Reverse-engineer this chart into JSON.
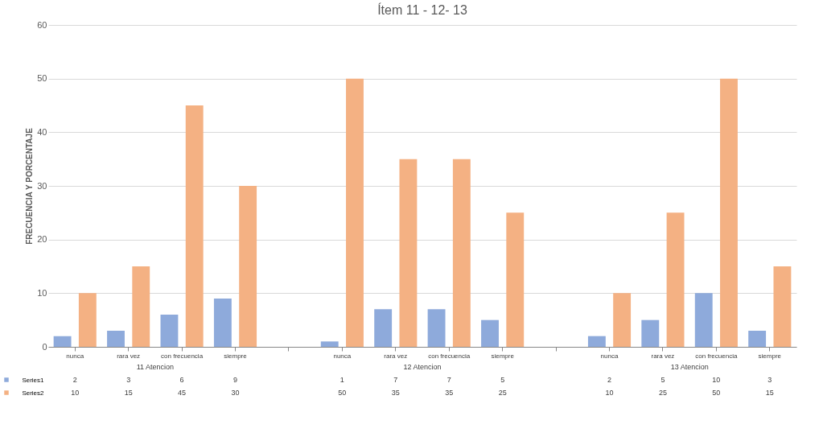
{
  "chart_data": {
    "type": "bar",
    "title": "Ítem 11 - 12- 13",
    "ylabel": "FRECUENCIA Y PORCENTAJE",
    "categories": [
      "nunca",
      "rara vez",
      "con frecuencia",
      "siempre",
      null,
      "nunca",
      "rara vez",
      "con frecuencia",
      "siempre",
      null,
      "nunca",
      "rara vez",
      "con frecuencia",
      "siempre"
    ],
    "series": [
      {
        "name": "Series1",
        "color": "#8eaadb",
        "values": [
          2,
          3,
          6,
          9,
          null,
          1,
          7,
          7,
          5,
          null,
          2,
          5,
          10,
          3
        ]
      },
      {
        "name": "Series2",
        "color": "#f4b183",
        "values": [
          10,
          15,
          45,
          30,
          null,
          50,
          35,
          35,
          25,
          null,
          10,
          25,
          50,
          15
        ]
      }
    ],
    "annotations": [
      "11 Atencion",
      "12 Atencion",
      "13 Atencion"
    ],
    "ylim": [
      0,
      60
    ],
    "yticks": [
      0,
      10,
      20,
      30,
      40,
      50,
      60
    ],
    "grid": "y",
    "data_labels": true,
    "legend": "bottom"
  }
}
